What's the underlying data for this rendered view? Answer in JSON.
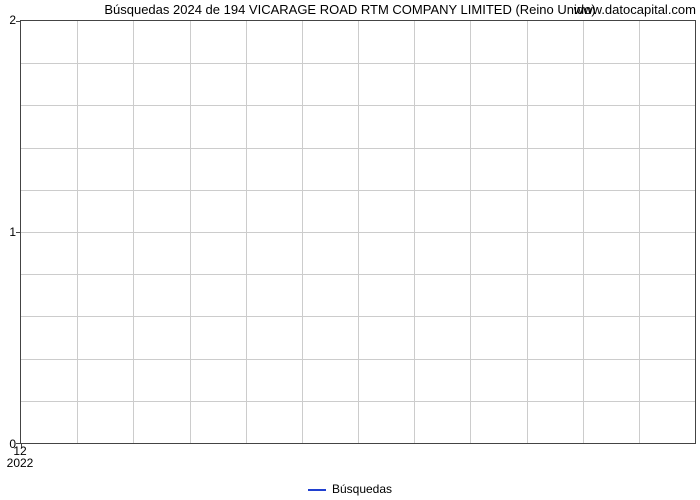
{
  "chart": {
    "type": "line",
    "title": "Búsquedas 2024 de 194 VICARAGE ROAD RTM COMPANY LIMITED (Reino Unido)",
    "watermark": "www.datocapital.com",
    "title_fontsize": 13,
    "label_fontsize": 12,
    "background_color": "#ffffff",
    "grid_color": "#cccccc",
    "axis_color": "#444444",
    "text_color": "#000000",
    "y": {
      "min": 0,
      "max": 2,
      "major_ticks": [
        0,
        1,
        2
      ],
      "major_labels": [
        "0",
        "1",
        "2"
      ],
      "minor_per_major": 5
    },
    "x": {
      "columns": 12,
      "tick_top_label": "12",
      "tick_bot_label": "2022",
      "tick_position_col": 0
    },
    "legend": {
      "label": "Búsquedas",
      "color": "#2040d0"
    }
  }
}
